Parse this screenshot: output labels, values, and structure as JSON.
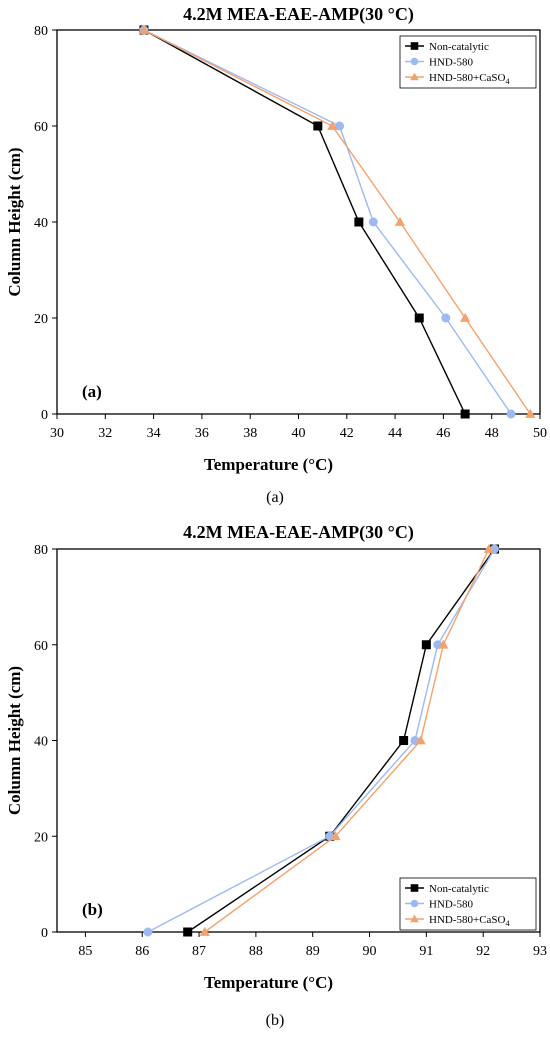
{
  "figure": {
    "colors": {
      "non_catalytic": "#000000",
      "hnd580": "#9DB9F2",
      "hnd580_caso4": "#F4A26B"
    },
    "legend_labels": [
      "Non-catalytic",
      "HND-580",
      "HND-580+CaSO",
      "4"
    ]
  },
  "chart_data": [
    {
      "type": "line",
      "title": "4.2M MEA-EAE-AMP(30 °C)",
      "xlabel": "Temperature (°C)",
      "ylabel": "Column Height (cm)",
      "panel_label": "(a)",
      "caption": "(a)",
      "xlim": [
        30,
        50
      ],
      "ylim": [
        0,
        80
      ],
      "xticks": [
        30,
        32,
        34,
        36,
        38,
        40,
        42,
        44,
        46,
        48,
        50
      ],
      "yticks": [
        0,
        20,
        40,
        60,
        80
      ],
      "legend_position": "top-right",
      "series": [
        {
          "name": "Non-catalytic",
          "marker": "square",
          "points": [
            [
              46.9,
              0
            ],
            [
              45.0,
              20
            ],
            [
              42.5,
              40
            ],
            [
              40.8,
              60
            ],
            [
              33.6,
              80
            ]
          ]
        },
        {
          "name": "HND-580",
          "marker": "circle",
          "points": [
            [
              48.8,
              0
            ],
            [
              46.1,
              20
            ],
            [
              43.1,
              40
            ],
            [
              41.7,
              60
            ],
            [
              33.6,
              80
            ]
          ]
        },
        {
          "name": "HND-580+CaSO4",
          "marker": "triangle",
          "points": [
            [
              49.6,
              0
            ],
            [
              46.9,
              20
            ],
            [
              44.2,
              40
            ],
            [
              41.4,
              60
            ],
            [
              33.6,
              80
            ]
          ]
        }
      ]
    },
    {
      "type": "line",
      "title": "4.2M MEA-EAE-AMP(30 °C)",
      "xlabel": "Temperature (°C)",
      "ylabel": "Column Height (cm)",
      "panel_label": "(b)",
      "caption": "(b)",
      "xlim": [
        84.5,
        93
      ],
      "ylim": [
        0,
        80
      ],
      "xticks": [
        85,
        86,
        87,
        88,
        89,
        90,
        91,
        92,
        93
      ],
      "yticks": [
        0,
        20,
        40,
        60,
        80
      ],
      "legend_position": "bottom-right",
      "series": [
        {
          "name": "Non-catalytic",
          "marker": "square",
          "points": [
            [
              86.8,
              0
            ],
            [
              89.3,
              20
            ],
            [
              90.6,
              40
            ],
            [
              91.0,
              60
            ],
            [
              92.2,
              80
            ]
          ]
        },
        {
          "name": "HND-580",
          "marker": "circle",
          "points": [
            [
              86.1,
              0
            ],
            [
              89.3,
              20
            ],
            [
              90.8,
              40
            ],
            [
              91.2,
              60
            ],
            [
              92.2,
              80
            ]
          ]
        },
        {
          "name": "HND-580+CaSO4",
          "marker": "triangle",
          "points": [
            [
              87.1,
              0
            ],
            [
              89.4,
              20
            ],
            [
              90.9,
              40
            ],
            [
              91.3,
              60
            ],
            [
              92.1,
              80
            ]
          ]
        }
      ]
    }
  ]
}
